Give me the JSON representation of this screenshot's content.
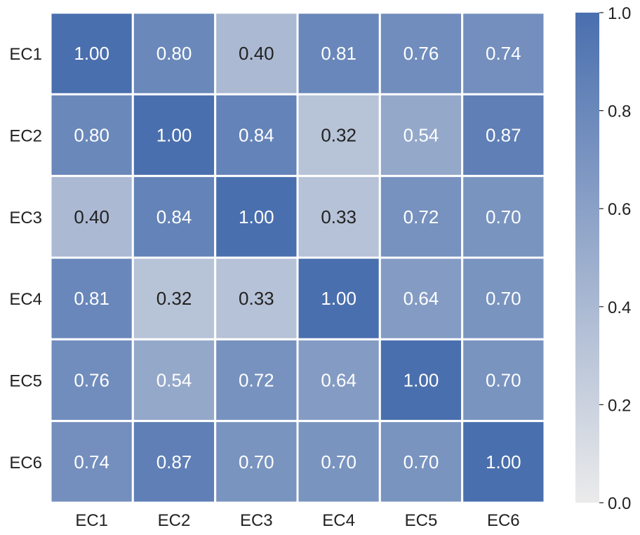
{
  "chart_data": {
    "type": "heatmap",
    "title": "",
    "xlabel": "",
    "ylabel": "",
    "x_categories": [
      "EC1",
      "EC2",
      "EC3",
      "EC4",
      "EC5",
      "EC6"
    ],
    "y_categories": [
      "EC1",
      "EC2",
      "EC3",
      "EC4",
      "EC5",
      "EC6"
    ],
    "values": [
      [
        1.0,
        0.8,
        0.4,
        0.81,
        0.76,
        0.74
      ],
      [
        0.8,
        1.0,
        0.84,
        0.32,
        0.54,
        0.87
      ],
      [
        0.4,
        0.84,
        1.0,
        0.33,
        0.72,
        0.7
      ],
      [
        0.81,
        0.32,
        0.33,
        1.0,
        0.64,
        0.7
      ],
      [
        0.76,
        0.54,
        0.72,
        0.64,
        1.0,
        0.7
      ],
      [
        0.74,
        0.87,
        0.7,
        0.7,
        0.7,
        1.0
      ]
    ],
    "value_format_decimals": 2,
    "annotations": true,
    "colorbar": {
      "vmin": 0.0,
      "vmax": 1.0,
      "ticks": [
        0.0,
        0.2,
        0.4,
        0.6,
        0.8,
        1.0
      ],
      "tick_labels": [
        "0.0",
        "0.2",
        "0.4",
        "0.6",
        "0.8",
        "1.0"
      ],
      "color_low": "#ebebeb",
      "color_high": "#4a6fae"
    },
    "grid_line_color": "#ffffff",
    "text_color_dark": "#222222",
    "text_color_light": "#ffffff",
    "legend_position": "right"
  }
}
